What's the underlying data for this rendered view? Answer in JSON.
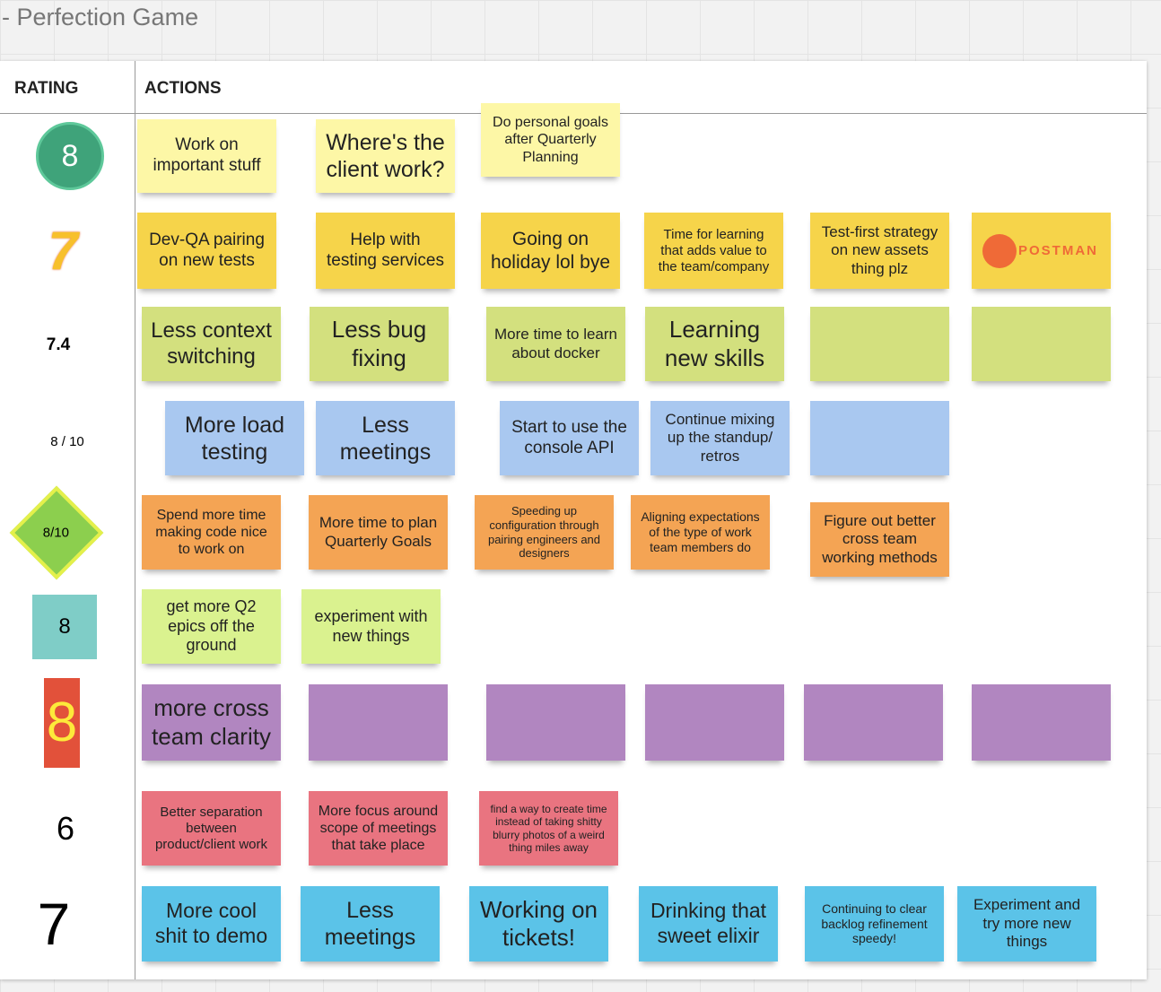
{
  "title": "- Perfection Game",
  "headers": {
    "rating": "RATING",
    "actions": "ACTIONS"
  },
  "rows": [
    {
      "rating": "8",
      "notes": [
        "Work on important stuff",
        "Where's the client work?",
        "Do personal goals after Quarterly Planning"
      ]
    },
    {
      "rating": "7",
      "notes": [
        "Dev-QA pairing on new tests",
        "Help with testing services",
        "Going on holiday lol bye",
        "Time for learning that adds value to the team/company",
        "Test-first strategy on new assets thing plz",
        "POSTMAN"
      ]
    },
    {
      "rating": "7.4",
      "notes": [
        "Less context switching",
        "Less bug fixing",
        "More time to learn about docker",
        "Learning new skills"
      ]
    },
    {
      "rating": "8 / 10",
      "notes": [
        "More load testing",
        "Less meetings",
        "Start to use the console API",
        "Continue mixing up the standup/ retros"
      ]
    },
    {
      "rating": "8/10",
      "notes": [
        "Spend more time making code nice to work on",
        "More time to plan Quarterly Goals",
        "Speeding up configuration through pairing engineers and designers",
        "Aligning expectations of the type of work team members do",
        "Figure out better cross team working methods"
      ]
    },
    {
      "rating": "8",
      "notes": [
        "get more Q2 epics off the ground",
        "experiment with new things"
      ]
    },
    {
      "rating": "8",
      "notes": [
        "more cross team clarity"
      ]
    },
    {
      "rating": "6",
      "notes": [
        "Better separation between product/client work",
        "More focus around scope of meetings that take place",
        "find a way to create time instead of taking shitty blurry photos of a weird thing miles away"
      ]
    },
    {
      "rating": "7",
      "notes": [
        "More cool shit to demo",
        "Less meetings",
        "Working on tickets!",
        "Drinking that sweet elixir",
        "Continuing to clear backlog refinement speedy!",
        "Experiment and try more new things"
      ]
    }
  ]
}
